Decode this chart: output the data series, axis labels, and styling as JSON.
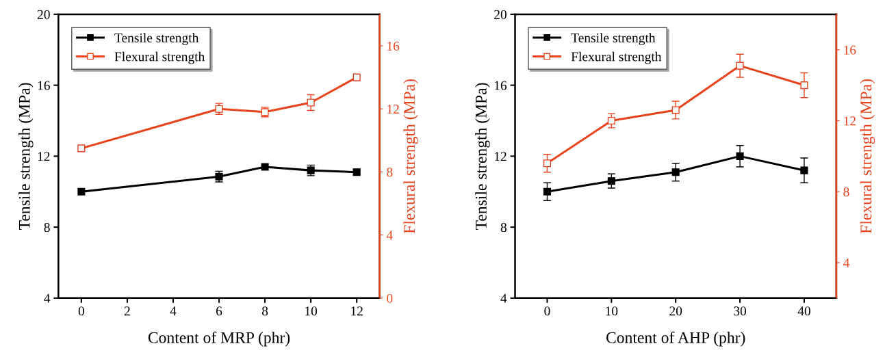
{
  "chart_data": [
    {
      "type": "line",
      "xlabel": "Content of MRP (phr)",
      "ylabel": "Tensile strength (MPa)",
      "y2label": "Flexural strength (MPa)",
      "x": [
        0,
        6,
        8,
        10,
        12
      ],
      "xlim": [
        -1,
        13
      ],
      "xticks": [
        0,
        2,
        4,
        6,
        8,
        10,
        12
      ],
      "ylim": [
        4,
        20
      ],
      "yticks": [
        4,
        8,
        12,
        16,
        20
      ],
      "y2lim": [
        0,
        18
      ],
      "y2ticks": [
        0,
        4,
        8,
        12,
        16
      ],
      "legend": "top left",
      "grid": false,
      "series": [
        {
          "name": "Tensile strength",
          "color": "#000000",
          "marker": "square",
          "values": [
            10.0,
            10.85,
            11.4,
            11.2,
            11.1
          ],
          "errors": [
            null,
            0.3,
            null,
            0.3,
            0.15
          ]
        },
        {
          "name": "Flexural strength",
          "color": "#e8431c",
          "marker": "square",
          "axis": "y2",
          "values": [
            9.5,
            12.0,
            11.8,
            12.4,
            14.0
          ],
          "errors": [
            null,
            0.35,
            0.3,
            0.5,
            null
          ]
        }
      ]
    },
    {
      "type": "line",
      "xlabel": "Content of AHP (phr)",
      "ylabel": "Tensile strength (MPa)",
      "y2label": "Flexural strength (MPa)",
      "x": [
        0,
        10,
        20,
        30,
        40
      ],
      "xlim": [
        -5,
        45
      ],
      "xticks": [
        0,
        10,
        20,
        30,
        40
      ],
      "ylim": [
        4,
        20
      ],
      "yticks": [
        4,
        8,
        12,
        16,
        20
      ],
      "y2lim": [
        2,
        18
      ],
      "y2ticks": [
        4,
        8,
        12,
        16
      ],
      "legend": "top left",
      "grid": false,
      "series": [
        {
          "name": "Tensile strength",
          "color": "#000000",
          "marker": "square",
          "values": [
            10.0,
            10.6,
            11.1,
            12.0,
            11.2
          ],
          "errors": [
            0.5,
            0.4,
            0.5,
            0.6,
            0.7
          ]
        },
        {
          "name": "Flexural strength",
          "color": "#e8431c",
          "marker": "square",
          "axis": "y2",
          "values": [
            9.6,
            12.0,
            12.6,
            15.1,
            14.0
          ],
          "errors": [
            0.5,
            0.4,
            0.5,
            0.65,
            0.7
          ]
        }
      ]
    }
  ]
}
